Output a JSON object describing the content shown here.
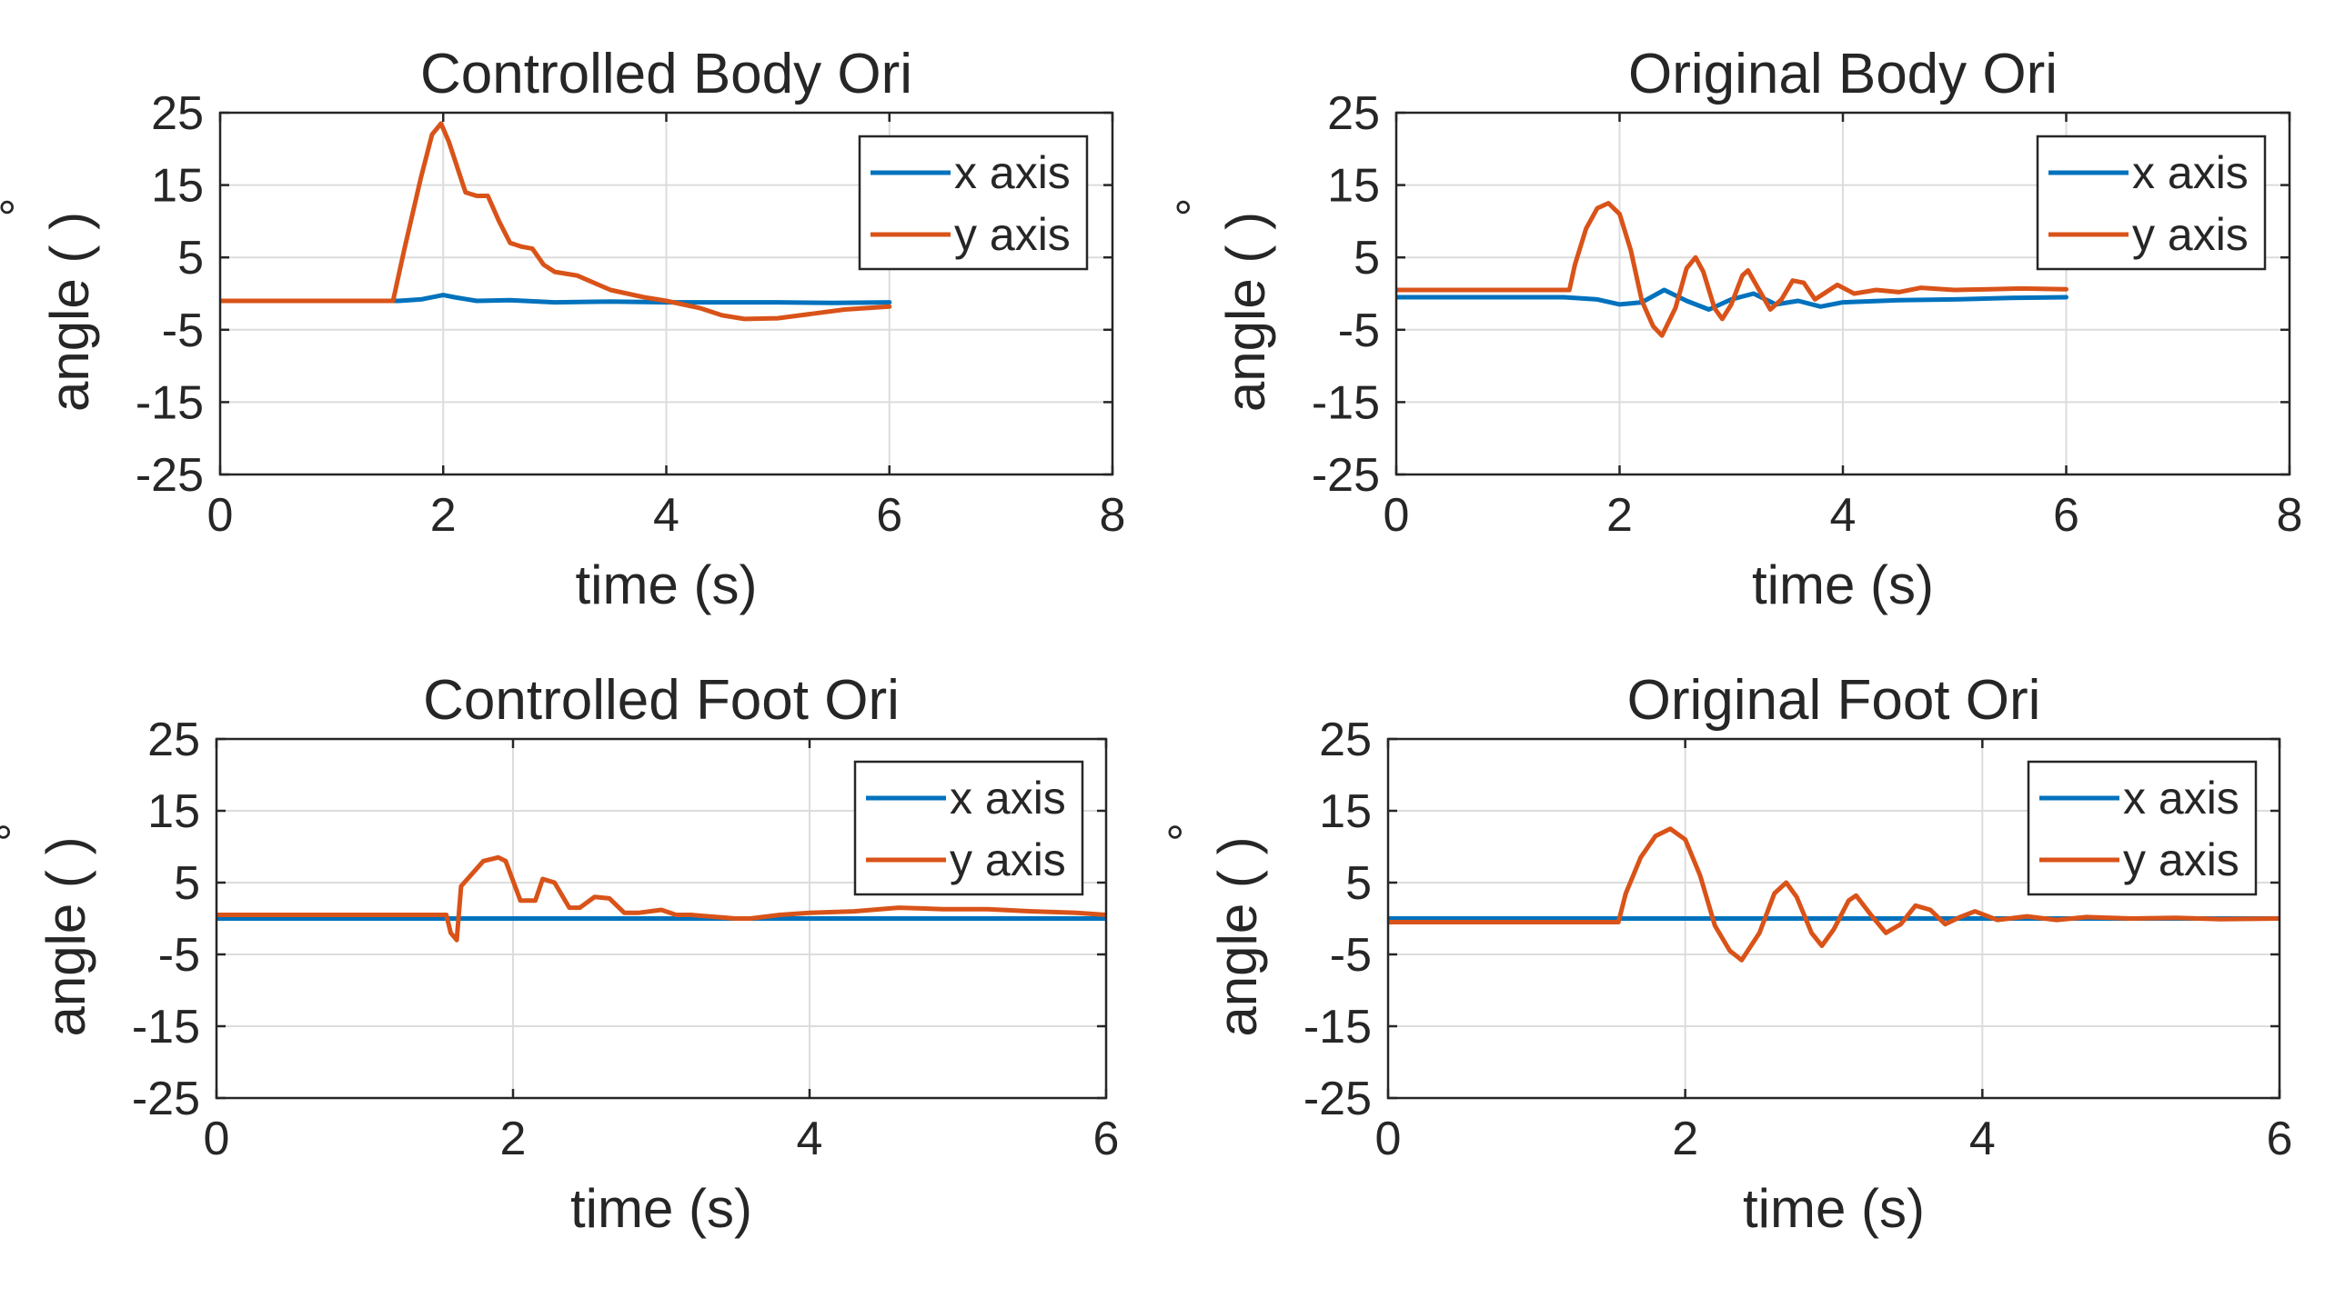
{
  "colors": {
    "x_axis": "#0072BD",
    "y_axis": "#D95319",
    "axis": "#262626",
    "grid": "#DCDCDC",
    "background": "#FFFFFF"
  },
  "chart_data": [
    {
      "type": "line",
      "title": "Controlled Body Ori",
      "xlabel": "time (s)",
      "ylabel": "angle ( )",
      "ylabel_degree": "°",
      "xlim": [
        0,
        8
      ],
      "ylim": [
        -25,
        25
      ],
      "xticks": [
        "0",
        "2",
        "4",
        "6",
        "8"
      ],
      "yticks": [
        "25",
        "15",
        "5",
        "-5",
        "-15",
        "-25"
      ],
      "legend": [
        "x axis",
        "y axis"
      ],
      "legend_position": "top-right",
      "series": [
        {
          "name": "x axis",
          "x": [
            0,
            1.5,
            1.6,
            1.8,
            2.0,
            2.1,
            2.3,
            2.6,
            3.0,
            3.5,
            4.0,
            4.5,
            5.0,
            5.5,
            6.0
          ],
          "y": [
            -1,
            -1,
            -1,
            -0.8,
            -0.2,
            -0.5,
            -1.0,
            -0.9,
            -1.2,
            -1.1,
            -1.2,
            -1.2,
            -1.2,
            -1.3,
            -1.2
          ]
        },
        {
          "name": "y axis",
          "x": [
            0,
            1.55,
            1.65,
            1.8,
            1.9,
            1.98,
            2.05,
            2.2,
            2.3,
            2.4,
            2.5,
            2.6,
            2.7,
            2.8,
            2.9,
            3.0,
            3.2,
            3.5,
            3.8,
            4.0,
            4.3,
            4.5,
            4.7,
            5.0,
            5.3,
            5.6,
            6.0
          ],
          "y": [
            -1,
            -1,
            6,
            16,
            22,
            23.5,
            21,
            14,
            13.5,
            13.5,
            10,
            7,
            6.5,
            6.2,
            4,
            3,
            2.5,
            0.5,
            -0.5,
            -1,
            -2,
            -3,
            -3.5,
            -3.4,
            -2.8,
            -2.2,
            -1.8
          ]
        }
      ]
    },
    {
      "type": "line",
      "title": "Original Body Ori",
      "xlabel": "time (s)",
      "ylabel": "angle ( )",
      "ylabel_degree": "°",
      "xlim": [
        0,
        8
      ],
      "ylim": [
        -25,
        25
      ],
      "xticks": [
        "0",
        "2",
        "4",
        "6",
        "8"
      ],
      "yticks": [
        "25",
        "15",
        "5",
        "-5",
        "-15",
        "-25"
      ],
      "legend": [
        "x axis",
        "y axis"
      ],
      "legend_position": "top-right",
      "series": [
        {
          "name": "x axis",
          "x": [
            0,
            1.5,
            1.8,
            2.0,
            2.2,
            2.4,
            2.6,
            2.8,
            3.0,
            3.2,
            3.4,
            3.6,
            3.8,
            4.0,
            4.5,
            5.0,
            5.5,
            6.0
          ],
          "y": [
            -0.5,
            -0.5,
            -0.8,
            -1.5,
            -1.2,
            0.5,
            -1,
            -2.2,
            -0.8,
            0,
            -1.5,
            -1,
            -1.8,
            -1.2,
            -0.9,
            -0.8,
            -0.6,
            -0.5
          ]
        },
        {
          "name": "y axis",
          "x": [
            0,
            1.55,
            1.6,
            1.7,
            1.8,
            1.9,
            2.0,
            2.1,
            2.2,
            2.3,
            2.38,
            2.5,
            2.6,
            2.68,
            2.75,
            2.85,
            2.92,
            3.0,
            3.1,
            3.15,
            3.25,
            3.35,
            3.45,
            3.55,
            3.65,
            3.75,
            3.85,
            3.95,
            4.1,
            4.3,
            4.5,
            4.7,
            5.0,
            5.3,
            5.6,
            6.0
          ],
          "y": [
            0.5,
            0.5,
            4,
            9,
            11.8,
            12.5,
            11,
            6,
            -1,
            -4.5,
            -5.8,
            -2,
            3.5,
            5,
            3,
            -2,
            -3.5,
            -1.5,
            2.5,
            3.2,
            0.5,
            -2.2,
            -0.8,
            1.8,
            1.5,
            -0.8,
            0.2,
            1.2,
            0,
            0.5,
            0.2,
            0.8,
            0.5,
            0.6,
            0.7,
            0.6
          ]
        }
      ]
    },
    {
      "type": "line",
      "title": "Controlled Foot Ori",
      "xlabel": "time (s)",
      "ylabel": "angle ( )",
      "ylabel_degree": "°",
      "xlim": [
        0,
        6
      ],
      "ylim": [
        -25,
        25
      ],
      "xticks": [
        "0",
        "2",
        "4",
        "6"
      ],
      "yticks": [
        "25",
        "15",
        "5",
        "-5",
        "-15",
        "-25"
      ],
      "legend": [
        "x axis",
        "y axis"
      ],
      "legend_position": "top-right",
      "series": [
        {
          "name": "x axis",
          "x": [
            0,
            6
          ],
          "y": [
            0,
            0
          ]
        },
        {
          "name": "y axis",
          "x": [
            0,
            1.55,
            1.58,
            1.62,
            1.65,
            1.8,
            1.9,
            1.95,
            2.05,
            2.15,
            2.2,
            2.28,
            2.38,
            2.45,
            2.55,
            2.65,
            2.75,
            2.85,
            3.0,
            3.1,
            3.2,
            3.5,
            3.6,
            3.8,
            4.0,
            4.3,
            4.6,
            4.9,
            5.2,
            5.5,
            5.8,
            6.0
          ],
          "y": [
            0.5,
            0.5,
            -2,
            -3,
            4.5,
            8,
            8.5,
            8,
            2.5,
            2.5,
            5.5,
            5,
            1.5,
            1.5,
            3,
            2.8,
            0.8,
            0.8,
            1.2,
            0.5,
            0.5,
            0,
            0,
            0.5,
            0.8,
            1.0,
            1.5,
            1.3,
            1.3,
            1.0,
            0.8,
            0.5
          ]
        }
      ]
    },
    {
      "type": "line",
      "title": "Original Foot Ori",
      "xlabel": "time (s)",
      "ylabel": "angle ( )",
      "ylabel_degree": "°",
      "xlim": [
        0,
        6
      ],
      "ylim": [
        -25,
        25
      ],
      "xticks": [
        "0",
        "2",
        "4",
        "6"
      ],
      "yticks": [
        "25",
        "15",
        "5",
        "-5",
        "-15",
        "-25"
      ],
      "legend": [
        "x axis",
        "y axis"
      ],
      "legend_position": "top-right",
      "series": [
        {
          "name": "x axis",
          "x": [
            0,
            6
          ],
          "y": [
            0,
            0
          ]
        },
        {
          "name": "y axis",
          "x": [
            0,
            1.55,
            1.6,
            1.7,
            1.8,
            1.9,
            2.0,
            2.1,
            2.2,
            2.3,
            2.38,
            2.5,
            2.6,
            2.68,
            2.75,
            2.85,
            2.92,
            3.0,
            3.1,
            3.15,
            3.25,
            3.35,
            3.45,
            3.55,
            3.65,
            3.75,
            3.85,
            3.95,
            4.1,
            4.3,
            4.5,
            4.7,
            5.0,
            5.3,
            5.6,
            6.0
          ],
          "y": [
            -0.5,
            -0.5,
            3.5,
            8.5,
            11.5,
            12.5,
            11,
            6,
            -1,
            -4.5,
            -5.8,
            -2,
            3.5,
            5,
            3,
            -2,
            -3.8,
            -1.5,
            2.5,
            3.2,
            0.5,
            -2,
            -0.8,
            1.8,
            1.2,
            -0.8,
            0.2,
            1.0,
            -0.2,
            0.3,
            -0.2,
            0.2,
            0,
            0.1,
            -0.1,
            0
          ]
        }
      ]
    }
  ]
}
